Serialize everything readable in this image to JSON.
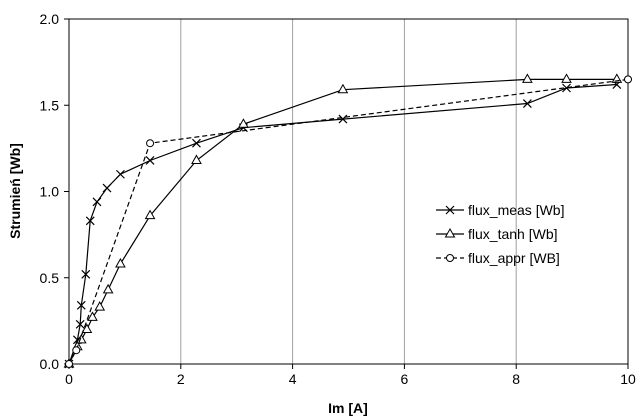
{
  "chart_data": {
    "type": "line",
    "title": "",
    "xlabel": "Im [A]",
    "ylabel": "Strumień [Wb]",
    "xlim": [
      0,
      10
    ],
    "ylim": [
      0,
      2.0
    ],
    "x_ticks": [
      "0",
      "2",
      "4",
      "6",
      "8",
      "10"
    ],
    "y_ticks": [
      "0.0",
      "0.5",
      "1.0",
      "1.5",
      "2.0"
    ],
    "grid": "vertical",
    "legend_position": "right",
    "series": [
      {
        "name": "flux_meas [Wb]",
        "marker": "x",
        "line": "solid",
        "x": [
          0,
          0.15,
          0.2,
          0.22,
          0.3,
          0.38,
          0.5,
          0.68,
          0.92,
          1.45,
          2.28,
          3.12,
          4.9,
          8.2,
          8.9,
          9.8
        ],
        "y": [
          0,
          0.14,
          0.23,
          0.34,
          0.52,
          0.83,
          0.94,
          1.02,
          1.1,
          1.18,
          1.28,
          1.37,
          1.42,
          1.51,
          1.6,
          1.62
        ]
      },
      {
        "name": "flux_tanh [Wb]",
        "marker": "triangle",
        "line": "solid",
        "x": [
          0,
          0.15,
          0.22,
          0.32,
          0.42,
          0.55,
          0.7,
          0.92,
          1.45,
          2.28,
          3.12,
          4.9,
          8.2,
          8.9,
          9.8
        ],
        "y": [
          0,
          0.1,
          0.14,
          0.2,
          0.27,
          0.33,
          0.43,
          0.58,
          0.86,
          1.18,
          1.39,
          1.59,
          1.65,
          1.65,
          1.65
        ]
      },
      {
        "name": "flux_appr [WB]",
        "marker": "circle",
        "line": "dashed",
        "x": [
          0,
          0.13,
          1.45,
          10.0
        ],
        "y": [
          0,
          0.08,
          1.28,
          1.65
        ]
      }
    ]
  }
}
